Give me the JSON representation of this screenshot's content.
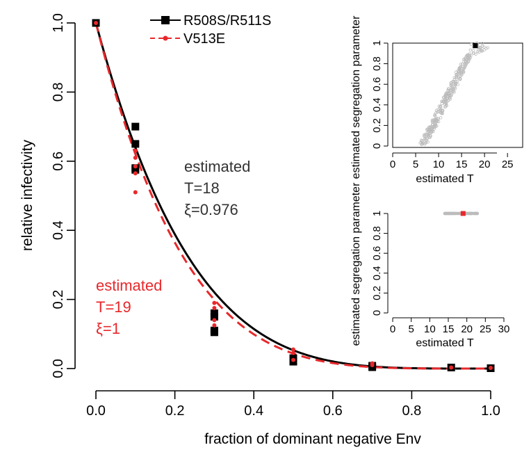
{
  "chart_data": [
    {
      "type": "scatter",
      "title": "",
      "xlabel": "fraction of dominant negative Env",
      "ylabel": "relative infectivity",
      "xlim": [
        0,
        1
      ],
      "ylim": [
        0,
        1
      ],
      "x_ticks": [
        "0.0",
        "0.2",
        "0.4",
        "0.6",
        "0.8",
        "1.0"
      ],
      "y_ticks": [
        "0.0",
        "0.2",
        "0.4",
        "0.6",
        "0.8",
        "1.0"
      ],
      "grid": false,
      "legend": "top-center",
      "series": [
        {
          "name": "R508S/R511S",
          "color": "#000000",
          "marker": "square",
          "line": "solid",
          "points": [
            [
              0,
              1.0
            ],
            [
              0.1,
              0.7
            ],
            [
              0.1,
              0.65
            ],
            [
              0.1,
              0.58
            ],
            [
              0.1,
              0.575
            ],
            [
              0.3,
              0.16
            ],
            [
              0.3,
              0.15
            ],
            [
              0.3,
              0.11
            ],
            [
              0.3,
              0.105
            ],
            [
              0.5,
              0.03
            ],
            [
              0.5,
              0.02
            ],
            [
              0.7,
              0.008
            ],
            [
              0.7,
              0.004
            ],
            [
              0.9,
              0.003
            ],
            [
              1.0,
              0.001
            ]
          ],
          "fit": {
            "T": 18,
            "xi": 0.976
          }
        },
        {
          "name": "V513E",
          "color": "#e8282b",
          "marker": "dot",
          "line": "dashed",
          "points": [
            [
              0,
              1.0
            ],
            [
              0.1,
              0.63
            ],
            [
              0.1,
              0.61
            ],
            [
              0.1,
              0.585
            ],
            [
              0.1,
              0.565
            ],
            [
              0.1,
              0.51
            ],
            [
              0.3,
              0.19
            ],
            [
              0.3,
              0.175
            ],
            [
              0.3,
              0.14
            ],
            [
              0.3,
              0.125
            ],
            [
              0.5,
              0.055
            ],
            [
              0.5,
              0.045
            ],
            [
              0.5,
              0.025
            ],
            [
              0.7,
              0.015
            ],
            [
              0.7,
              0.01
            ],
            [
              0.9,
              0.003
            ],
            [
              1.0,
              0.002
            ]
          ],
          "fit": {
            "T": 19,
            "xi": 1
          }
        }
      ],
      "annotations": [
        {
          "lines": [
            "estimated",
            "T=18",
            "ξ=0.976"
          ],
          "color": "#333333"
        },
        {
          "lines": [
            "estimated",
            "T=19",
            "ξ=1"
          ],
          "color": "#e8282b"
        }
      ]
    },
    {
      "type": "scatter",
      "title": "",
      "xlabel": "estimated T",
      "ylabel": "estimated segregation parameter",
      "xlim": [
        0,
        28
      ],
      "ylim": [
        0,
        1
      ],
      "x_ticks": [
        "0",
        "5",
        "10",
        "15",
        "20",
        "25"
      ],
      "y_ticks": [
        "0",
        "0.2",
        "0.4",
        "0.6",
        "0.8",
        "1"
      ],
      "cloud_color": "#bbbbbb",
      "highlight": {
        "x": 18,
        "y": 0.976,
        "color": "#000000"
      }
    },
    {
      "type": "scatter",
      "title": "",
      "xlabel": "estimated T",
      "ylabel": "estimated segregation parameter",
      "xlim": [
        0,
        30
      ],
      "ylim": [
        0,
        1
      ],
      "x_ticks": [
        "0",
        "5",
        "10",
        "15",
        "20",
        "25",
        "30"
      ],
      "y_ticks": [
        "0",
        "0.2",
        "0.4",
        "0.6",
        "0.8",
        "1"
      ],
      "cloud_color": "#bbbbbb",
      "highlight": {
        "x": 19,
        "y": 1,
        "color": "#e8282b"
      }
    }
  ]
}
